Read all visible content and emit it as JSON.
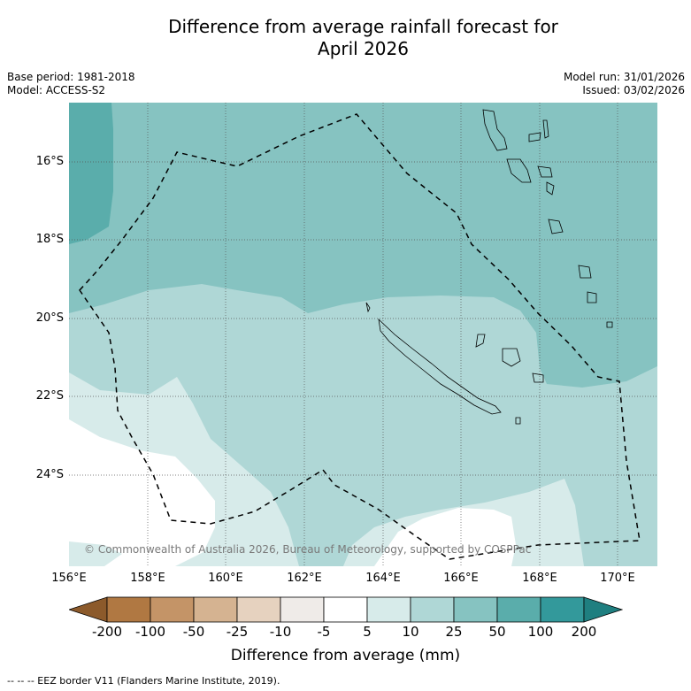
{
  "title_line1": "Difference from average rainfall forecast for",
  "title_line2": "April 2026",
  "base_period": "Base period: 1981-2018",
  "model": "Model: ACCESS-S2",
  "model_run": "Model run: 31/01/2026",
  "issued": "Issued: 03/02/2026",
  "y_ticks": [
    "16°S",
    "18°S",
    "20°S",
    "22°S",
    "24°S"
  ],
  "x_ticks": [
    "156°E",
    "158°E",
    "160°E",
    "162°E",
    "164°E",
    "166°E",
    "168°E",
    "170°E"
  ],
  "copyright": "© Commonwealth of Australia 2026, Bureau of Meteorology, supported by COSPPac",
  "colorbar": {
    "labels": [
      "-200",
      "-100",
      "-50",
      "-25",
      "-10",
      "-5",
      "5",
      "10",
      "25",
      "50",
      "100",
      "200"
    ],
    "colors": [
      "#8c5a2b",
      "#b07842",
      "#c49467",
      "#d5b391",
      "#e6d2bf",
      "#efebe8",
      "#ffffff",
      "#d7ebea",
      "#afd7d6",
      "#86c3c1",
      "#5aadab",
      "#33999b",
      "#1f7f80"
    ],
    "title": "Difference from average (mm)"
  },
  "footer": "--  --  -- EEZ border V11 (Flanders Marine Institute, 2019).",
  "colors": {
    "band_50_100": "#5aadab",
    "band_25_50": "#86c3c1",
    "band_10_25": "#afd7d6",
    "band_5_10": "#d7ebea",
    "band_neutral": "#ffffff"
  }
}
